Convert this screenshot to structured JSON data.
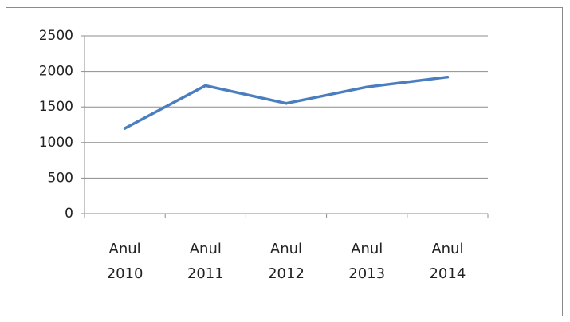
{
  "chart_data": {
    "type": "line",
    "title": "",
    "xlabel": "",
    "ylabel": "",
    "categories": [
      [
        "Anul",
        "2010"
      ],
      [
        "Anul",
        "2011"
      ],
      [
        "Anul",
        "2012"
      ],
      [
        "Anul",
        "2013"
      ],
      [
        "Anul",
        "2014"
      ]
    ],
    "series": [
      {
        "values": [
          1200,
          1800,
          1550,
          1780,
          1920
        ],
        "color": "#4a7ebf"
      }
    ],
    "ylim": [
      0,
      2500
    ],
    "yticks": [
      "0",
      "500",
      "1000",
      "1500",
      "2000",
      "2500"
    ],
    "grid": true,
    "legend": "none"
  }
}
